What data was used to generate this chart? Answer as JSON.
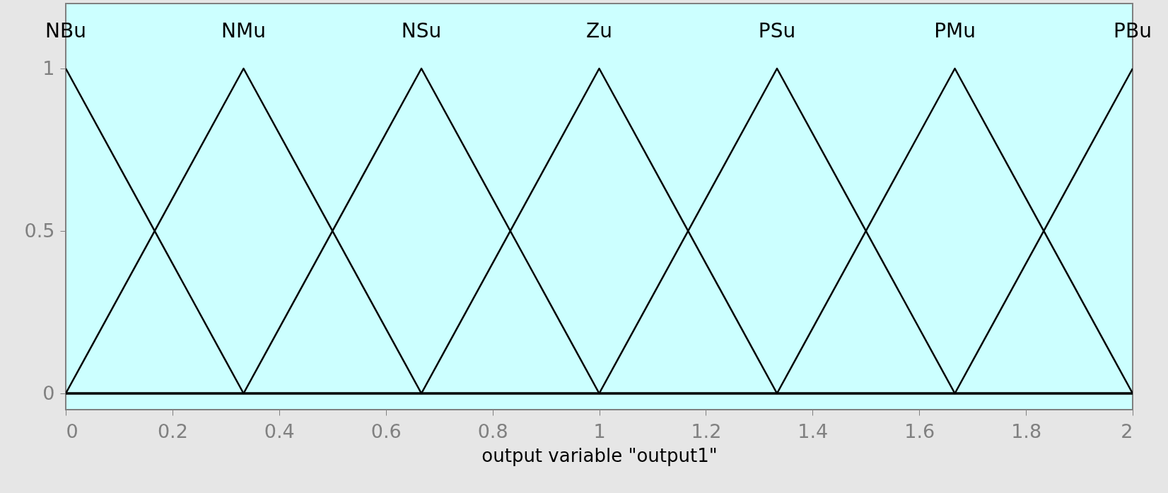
{
  "chart_data": {
    "type": "line",
    "xlabel": "output variable \"output1\"",
    "xlim": [
      0,
      2
    ],
    "ylim": [
      -0.05,
      1.2
    ],
    "xticks": [
      0,
      0.2,
      0.4,
      0.6,
      0.8,
      1,
      1.2,
      1.4,
      1.6,
      1.8,
      2
    ],
    "yticks": [
      0,
      0.5,
      1
    ],
    "grid": false,
    "marker": "none",
    "line_style": "solid",
    "series": [
      {
        "name": "NBu",
        "color": "#000000",
        "x": [
          0,
          0.3333,
          2
        ],
        "values": [
          1,
          0,
          0
        ]
      },
      {
        "name": "NMu",
        "color": "#000000",
        "x": [
          0,
          0.3333,
          0.6667,
          2
        ],
        "values": [
          0,
          1,
          0,
          0
        ]
      },
      {
        "name": "NSu",
        "color": "#000000",
        "x": [
          0,
          0.3333,
          0.6667,
          1,
          2
        ],
        "values": [
          0,
          0,
          1,
          0,
          0
        ]
      },
      {
        "name": "Zu",
        "color": "#000000",
        "x": [
          0,
          0.6667,
          1,
          1.3333,
          2
        ],
        "values": [
          0,
          0,
          1,
          0,
          0
        ]
      },
      {
        "name": "PSu",
        "color": "#000000",
        "x": [
          0,
          1,
          1.3333,
          1.6667,
          2
        ],
        "values": [
          0,
          0,
          1,
          0,
          0
        ]
      },
      {
        "name": "PMu",
        "color": "#000000",
        "x": [
          0,
          1.3333,
          1.6667,
          2
        ],
        "values": [
          0,
          0,
          1,
          0
        ]
      },
      {
        "name": "PBu",
        "color": "#000000",
        "x": [
          0,
          1.6667,
          2
        ],
        "values": [
          0,
          0,
          1
        ]
      }
    ]
  }
}
